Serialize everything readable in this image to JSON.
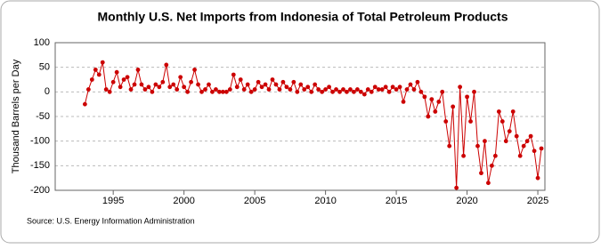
{
  "chart_data": {
    "type": "line",
    "title": "Monthly U.S. Net Imports from Indonesia of Total Petroleum Products",
    "y_label": "Thousand Barrels per Day",
    "source": "Source: U.S. Energy Information Administration",
    "x": [
      1993,
      1993.25,
      1993.5,
      1993.75,
      1994,
      1994.25,
      1994.5,
      1994.75,
      1995,
      1995.25,
      1995.5,
      1995.75,
      1996,
      1996.25,
      1996.5,
      1996.75,
      1997,
      1997.25,
      1997.5,
      1997.75,
      1998,
      1998.25,
      1998.5,
      1998.75,
      1999,
      1999.25,
      1999.5,
      1999.75,
      2000,
      2000.25,
      2000.5,
      2000.75,
      2001,
      2001.25,
      2001.5,
      2001.75,
      2002,
      2002.25,
      2002.5,
      2002.75,
      2003,
      2003.25,
      2003.5,
      2003.75,
      2004,
      2004.25,
      2004.5,
      2004.75,
      2005,
      2005.25,
      2005.5,
      2005.75,
      2006,
      2006.25,
      2006.5,
      2006.75,
      2007,
      2007.25,
      2007.5,
      2007.75,
      2008,
      2008.25,
      2008.5,
      2008.75,
      2009,
      2009.25,
      2009.5,
      2009.75,
      2010,
      2010.25,
      2010.5,
      2010.75,
      2011,
      2011.25,
      2011.5,
      2011.75,
      2012,
      2012.25,
      2012.5,
      2012.75,
      2013,
      2013.25,
      2013.5,
      2013.75,
      2014,
      2014.25,
      2014.5,
      2014.75,
      2015,
      2015.25,
      2015.5,
      2015.75,
      2016,
      2016.25,
      2016.5,
      2016.75,
      2017,
      2017.25,
      2017.5,
      2017.75,
      2018,
      2018.25,
      2018.5,
      2018.75,
      2019,
      2019.25,
      2019.5,
      2019.75,
      2020,
      2020.25,
      2020.5,
      2020.75,
      2021,
      2021.25,
      2021.5,
      2021.75,
      2022,
      2022.25,
      2022.5,
      2022.75,
      2023,
      2023.25,
      2023.5,
      2023.75,
      2024,
      2024.25,
      2024.5,
      2024.75,
      2025,
      2025.25
    ],
    "series": [
      {
        "name": "Net Imports",
        "color": "#cc0000",
        "values": [
          -25,
          5,
          25,
          45,
          35,
          60,
          5,
          0,
          20,
          40,
          10,
          25,
          30,
          5,
          15,
          45,
          15,
          5,
          10,
          0,
          15,
          10,
          20,
          55,
          10,
          15,
          5,
          30,
          10,
          0,
          20,
          45,
          15,
          0,
          5,
          15,
          0,
          5,
          0,
          0,
          0,
          5,
          35,
          10,
          25,
          5,
          15,
          0,
          5,
          20,
          10,
          15,
          5,
          25,
          15,
          5,
          20,
          10,
          5,
          20,
          0,
          15,
          5,
          10,
          0,
          15,
          5,
          0,
          5,
          10,
          0,
          5,
          0,
          5,
          0,
          5,
          0,
          5,
          0,
          -5,
          5,
          0,
          10,
          5,
          5,
          10,
          0,
          10,
          5,
          10,
          -20,
          5,
          15,
          5,
          20,
          0,
          -10,
          -50,
          -15,
          -40,
          -20,
          0,
          -60,
          -110,
          -30,
          -195,
          10,
          -130,
          -10,
          -60,
          0,
          -110,
          -165,
          -100,
          -185,
          -150,
          -130,
          -40,
          -60,
          -100,
          -80,
          -40,
          -90,
          -130,
          -110,
          -100,
          -90,
          -120,
          -175,
          -115
        ]
      }
    ],
    "xlim": [
      1990.9,
      2025.5
    ],
    "xticks": [
      1995,
      2000,
      2005,
      2010,
      2015,
      2020,
      2025
    ],
    "ylim": [
      -200,
      100
    ],
    "yticks": [
      -200,
      -150,
      -100,
      -50,
      0,
      50,
      100
    ],
    "grid": true
  }
}
